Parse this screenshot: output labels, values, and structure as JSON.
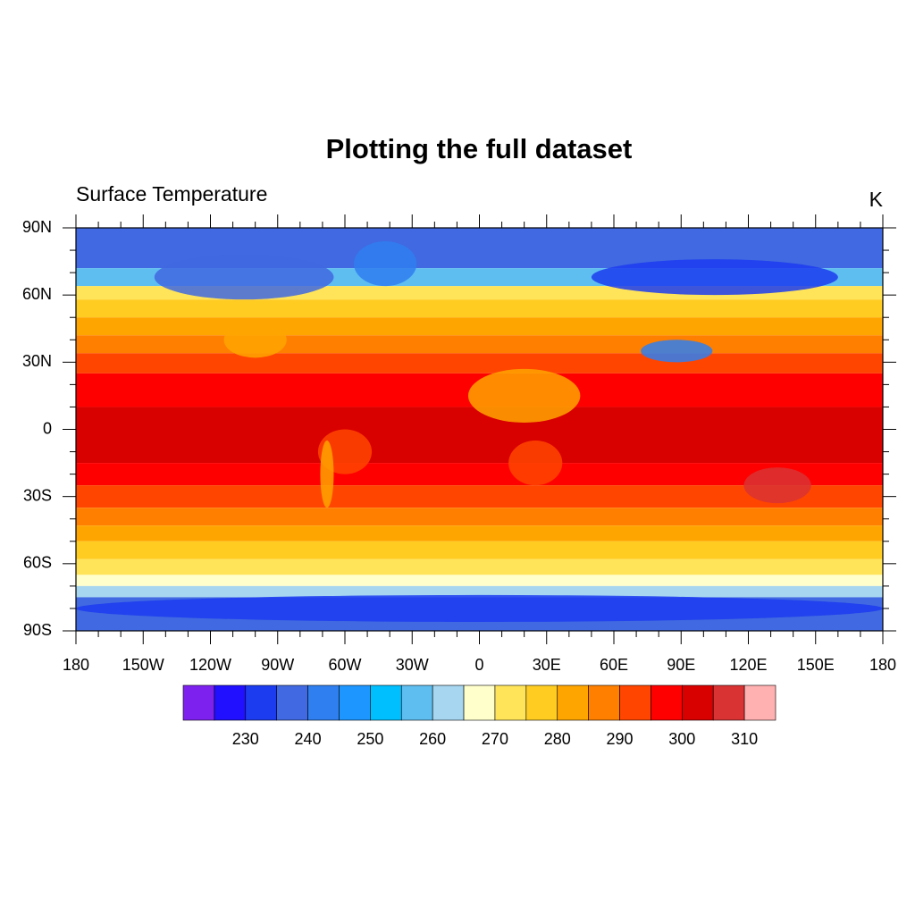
{
  "title": "Plotting the full dataset",
  "left_label": "Surface Temperature",
  "units": "K",
  "map": {
    "lon_labels": [
      "180",
      "150W",
      "120W",
      "90W",
      "60W",
      "30W",
      "0",
      "30E",
      "60E",
      "90E",
      "120E",
      "150E",
      "180"
    ],
    "lat_labels": [
      "90N",
      "60N",
      "30N",
      "0",
      "30S",
      "60S",
      "90S"
    ]
  },
  "colorbar": {
    "colors": [
      "#7d22ee",
      "#2010ff",
      "#1c3cf0",
      "#4169e1",
      "#2f7ff0",
      "#1e96ff",
      "#00bfff",
      "#5ebef0",
      "#a6d6f0",
      "#ffffcc",
      "#ffe45a",
      "#ffcc22",
      "#ffa500",
      "#ff7f00",
      "#ff4500",
      "#ff0000",
      "#d90000",
      "#d93333",
      "#ffb0b0"
    ],
    "labels": [
      230,
      240,
      250,
      260,
      270,
      280,
      290,
      300,
      310
    ]
  }
}
